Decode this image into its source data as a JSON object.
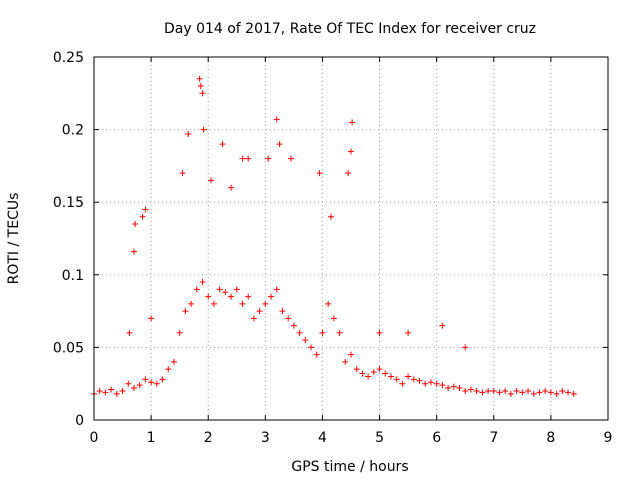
{
  "chart_data": {
    "type": "scatter",
    "title": "Day 014 of 2017, Rate Of TEC Index for receiver cruz",
    "xlabel": "GPS time / hours",
    "ylabel": "ROTI / TECUs",
    "xlim": [
      0,
      9
    ],
    "ylim": [
      0,
      0.25
    ],
    "xticks": [
      "0",
      "1",
      "2",
      "3",
      "4",
      "5",
      "6",
      "7",
      "8",
      "9"
    ],
    "yticks": [
      "0",
      "0.05",
      "0.1",
      "0.15",
      "0.2",
      "0.25"
    ],
    "grid": true,
    "marker": "+",
    "color": "#ff0000",
    "series": [
      {
        "name": "ROTI",
        "x": [
          0.0,
          0.1,
          0.2,
          0.3,
          0.4,
          0.5,
          0.6,
          0.7,
          0.8,
          0.9,
          1.0,
          1.1,
          1.2,
          1.3,
          1.4,
          1.5,
          1.6,
          1.7,
          1.8,
          1.9,
          2.0,
          2.1,
          2.2,
          2.3,
          2.4,
          2.5,
          2.6,
          2.7,
          2.8,
          2.9,
          3.0,
          3.1,
          3.2,
          3.3,
          3.4,
          3.5,
          3.6,
          3.7,
          3.8,
          3.9,
          4.0,
          4.1,
          4.2,
          4.3,
          4.4,
          4.5,
          4.6,
          4.7,
          4.8,
          4.9,
          5.0,
          5.1,
          5.2,
          5.3,
          5.4,
          5.5,
          5.6,
          5.7,
          5.8,
          5.9,
          6.0,
          6.1,
          6.2,
          6.3,
          6.4,
          6.5,
          6.6,
          6.7,
          6.8,
          6.9,
          7.0,
          7.1,
          7.2,
          7.3,
          7.4,
          7.5,
          7.6,
          7.7,
          7.8,
          7.9,
          8.0,
          8.1,
          8.2,
          8.3,
          8.4,
          0.62,
          0.7,
          0.72,
          0.85,
          0.9,
          1.0,
          1.55,
          1.65,
          1.85,
          1.87,
          1.9,
          1.92,
          2.05,
          2.25,
          2.4,
          2.6,
          2.7,
          3.05,
          3.2,
          3.25,
          3.45,
          3.95,
          4.15,
          4.45,
          4.52,
          4.5,
          5.0,
          5.5,
          6.1,
          6.5
        ],
        "y": [
          0.018,
          0.02,
          0.019,
          0.021,
          0.018,
          0.02,
          0.025,
          0.022,
          0.024,
          0.028,
          0.026,
          0.025,
          0.028,
          0.035,
          0.04,
          0.06,
          0.075,
          0.08,
          0.09,
          0.095,
          0.085,
          0.08,
          0.09,
          0.088,
          0.085,
          0.09,
          0.08,
          0.085,
          0.07,
          0.075,
          0.08,
          0.085,
          0.09,
          0.075,
          0.07,
          0.065,
          0.06,
          0.055,
          0.05,
          0.045,
          0.06,
          0.08,
          0.07,
          0.06,
          0.04,
          0.045,
          0.035,
          0.032,
          0.03,
          0.033,
          0.035,
          0.032,
          0.03,
          0.028,
          0.025,
          0.03,
          0.028,
          0.027,
          0.025,
          0.026,
          0.025,
          0.024,
          0.022,
          0.023,
          0.022,
          0.02,
          0.021,
          0.02,
          0.019,
          0.02,
          0.02,
          0.019,
          0.02,
          0.018,
          0.02,
          0.019,
          0.02,
          0.018,
          0.019,
          0.02,
          0.019,
          0.018,
          0.02,
          0.019,
          0.018,
          0.06,
          0.116,
          0.135,
          0.14,
          0.145,
          0.07,
          0.17,
          0.197,
          0.235,
          0.23,
          0.225,
          0.2,
          0.165,
          0.19,
          0.16,
          0.18,
          0.18,
          0.18,
          0.207,
          0.19,
          0.18,
          0.17,
          0.14,
          0.17,
          0.205,
          0.185,
          0.06,
          0.06,
          0.065,
          0.05
        ]
      }
    ]
  }
}
